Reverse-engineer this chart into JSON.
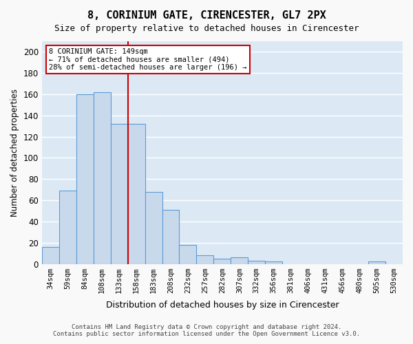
{
  "title": "8, CORINIUM GATE, CIRENCESTER, GL7 2PX",
  "subtitle": "Size of property relative to detached houses in Cirencester",
  "xlabel": "Distribution of detached houses by size in Cirencester",
  "ylabel": "Number of detached properties",
  "bar_color": "#c9d9ec",
  "bar_edge_color": "#5b9bd5",
  "background_color": "#dce9f5",
  "grid_color": "#ffffff",
  "categories": [
    "34sqm",
    "59sqm",
    "84sqm",
    "108sqm",
    "133sqm",
    "158sqm",
    "183sqm",
    "208sqm",
    "232sqm",
    "257sqm",
    "282sqm",
    "307sqm",
    "332sqm",
    "356sqm",
    "381sqm",
    "406sqm",
    "431sqm",
    "456sqm",
    "480sqm",
    "505sqm",
    "530sqm"
  ],
  "values": [
    16,
    69,
    160,
    162,
    132,
    132,
    68,
    51,
    18,
    8,
    5,
    6,
    3,
    2,
    0,
    0,
    0,
    0,
    0,
    2,
    0
  ],
  "ylim": [
    0,
    210
  ],
  "yticks": [
    0,
    20,
    40,
    60,
    80,
    100,
    120,
    140,
    160,
    180,
    200
  ],
  "property_line_x": 5.0,
  "property_line_color": "#cc0000",
  "annotation_text": "8 CORINIUM GATE: 149sqm\n← 71% of detached houses are smaller (494)\n28% of semi-detached houses are larger (196) →",
  "annotation_box_color": "#ffffff",
  "annotation_edge_color": "#cc0000",
  "footer_line1": "Contains HM Land Registry data © Crown copyright and database right 2024.",
  "footer_line2": "Contains public sector information licensed under the Open Government Licence v3.0."
}
